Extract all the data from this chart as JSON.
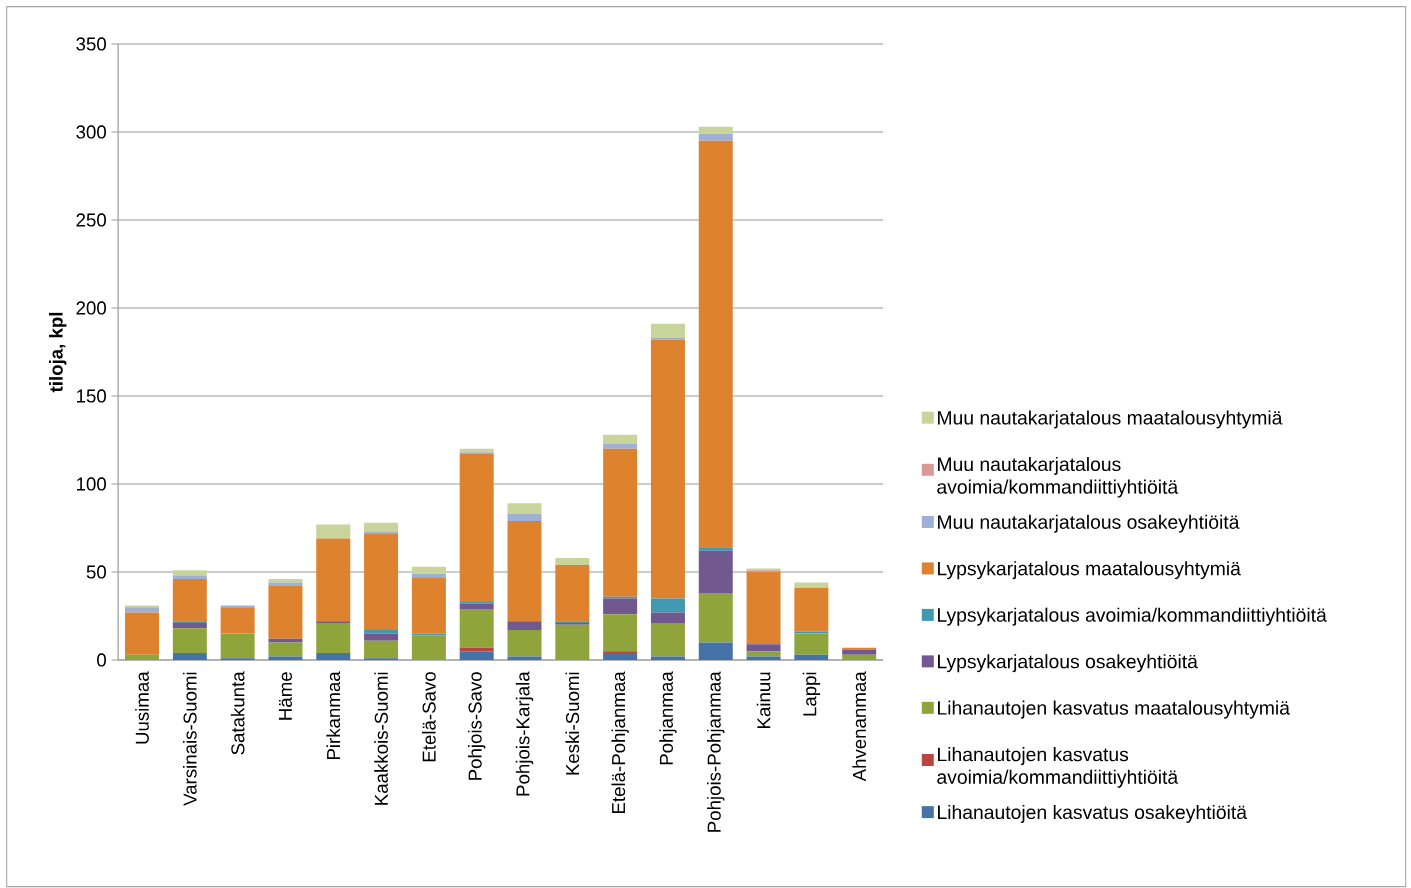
{
  "chart_data": {
    "type": "bar",
    "stacked": true,
    "ylabel": "tiloja, kpl",
    "ylim": [
      0,
      350
    ],
    "yticks": [
      0,
      50,
      100,
      150,
      200,
      250,
      300,
      350
    ],
    "grid": "y",
    "legend": "right",
    "categories": [
      "Uusimaa",
      "Varsinais-Suomi",
      "Satakunta",
      "Häme",
      "Pirkanmaa",
      "Kaakkois-Suomi",
      "Etelä-Savo",
      "Pohjois-Savo",
      "Pohjois-Karjala",
      "Keski-Suomi",
      "Etelä-Pohjanmaa",
      "Pohjanmaa",
      "Pohjois-Pohjanmaa",
      "Kainuu",
      "Lappi",
      "Ahvenanmaa"
    ],
    "series": [
      {
        "name": "Lihanautojen kasvatus osakeyhtiöitä",
        "color": "#4572a7",
        "values": [
          0,
          4,
          1,
          2,
          4,
          1,
          0,
          5,
          2,
          0,
          4,
          2,
          10,
          2,
          3,
          0
        ]
      },
      {
        "name": "Lihanautojen kasvatus avoimia/kommandiittiyhtiöitä",
        "color": "#b94440",
        "values": [
          0,
          0,
          0,
          0,
          0,
          0,
          0,
          2,
          0,
          0,
          1,
          0,
          0,
          0,
          0,
          0
        ]
      },
      {
        "name": "Lihanautojen kasvatus maatalousyhtymiä",
        "color": "#8fa53c",
        "values": [
          3,
          14,
          14,
          8,
          17,
          10,
          14,
          22,
          15,
          20,
          21,
          19,
          28,
          3,
          12,
          3
        ]
      },
      {
        "name": "Lypsykarjatalous osakeyhtiöitä",
        "color": "#71588f",
        "values": [
          0,
          3,
          0,
          2,
          1,
          4,
          0,
          3,
          5,
          1,
          9,
          6,
          24,
          4,
          0,
          3
        ]
      },
      {
        "name": "Lypsykarjatalous avoimia/kommandiittiyhtiöitä",
        "color": "#4198af",
        "values": [
          0,
          1,
          0,
          0,
          0,
          2,
          1,
          1,
          0,
          1,
          1,
          8,
          2,
          0,
          1,
          0
        ]
      },
      {
        "name": "Lypsykarjatalous maatalousyhtymiä",
        "color": "#dd8330",
        "values": [
          24,
          24,
          15,
          30,
          47,
          55,
          32,
          84,
          57,
          32,
          84,
          147,
          231,
          41,
          25,
          1
        ]
      },
      {
        "name": "Muu nautakarjatalous osakeyhtiöitä",
        "color": "#a0b0d4",
        "values": [
          3,
          2,
          1,
          2,
          0,
          1,
          2,
          1,
          4,
          0,
          3,
          1,
          4,
          0,
          0,
          0
        ]
      },
      {
        "name": "Muu nautakarjatalous avoimia/kommandiittiyhtiöitä",
        "color": "#d79a99",
        "values": [
          0,
          0,
          0,
          0,
          0,
          0,
          0,
          0,
          0,
          0,
          0,
          0,
          0,
          1,
          0,
          0
        ]
      },
      {
        "name": "Muu nautakarjatalous maatalousyhtymiä",
        "color": "#c8d49a",
        "values": [
          1,
          3,
          0,
          2,
          8,
          5,
          4,
          2,
          6,
          4,
          5,
          8,
          4,
          1,
          3,
          0
        ]
      }
    ]
  }
}
